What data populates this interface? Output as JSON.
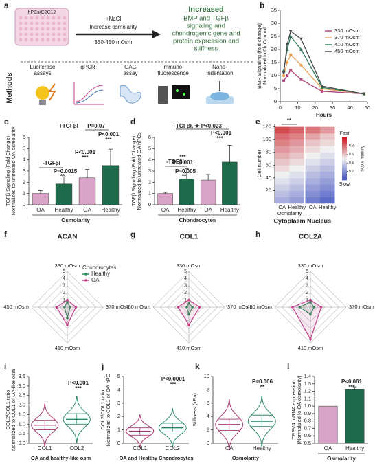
{
  "panel_a": {
    "label": "a",
    "cells": "hPCs/C2C12",
    "treatment": "+NaCl",
    "effect": "Increase osmolarity",
    "range": "330-450 mOsm",
    "result_title": "Increased",
    "result": [
      "BMP and TGFβ",
      "signaling and",
      "chondrogenic gene and",
      "protein expression and",
      "stiffness"
    ],
    "methods_title": "Methods",
    "methods": [
      [
        "Luciferase",
        "assays"
      ],
      [
        "qPCR"
      ],
      [
        "GAG",
        "assay"
      ],
      [
        "Immuno-",
        "fluorescence"
      ],
      [
        "Nano-",
        "indentation"
      ]
    ]
  },
  "chart_data": [
    {
      "label": "b",
      "type": "line",
      "ylabel": [
        "BMP Signaling (fold change)",
        "Normalized to 0h Control"
      ],
      "xlabel": "Hours",
      "x": [
        2,
        4,
        6,
        12,
        24,
        48
      ],
      "xlim": [
        0,
        50
      ],
      "xticks": [
        0,
        10,
        20,
        30,
        40,
        50
      ],
      "ylim": [
        0,
        35
      ],
      "yticks": [
        0,
        5,
        10,
        15,
        20,
        25,
        30,
        35
      ],
      "legend": "upper right",
      "series": [
        {
          "name": "330 mOsm",
          "color": "#b0457f",
          "values": [
            8,
            10,
            12,
            8.5,
            4,
            3
          ]
        },
        {
          "name": "370 mOsm",
          "color": "#f0a050",
          "values": [
            10,
            15,
            18,
            14,
            5,
            3
          ]
        },
        {
          "name": "410 mOsm",
          "color": "#2d7a55",
          "values": [
            12,
            20,
            25,
            20,
            5.5,
            3
          ]
        },
        {
          "name": "450 mOsm",
          "color": "#4a4a4a",
          "values": [
            11,
            22,
            27,
            24,
            6,
            3
          ]
        }
      ]
    },
    {
      "label": "c",
      "type": "bar",
      "categories": [
        "OA",
        "Healthy",
        "OA",
        "Healthy"
      ],
      "values": [
        1,
        1.85,
        2.4,
        3.5
      ],
      "errors": [
        0.25,
        0.65,
        0.75,
        1.45
      ],
      "colors": [
        "#d9a3c7",
        "#1c6b4a",
        "#d9a3c7",
        "#1c6b4a"
      ],
      "ylim": [
        0,
        6
      ],
      "yticks": [
        0,
        1,
        2,
        3,
        4,
        5,
        6
      ],
      "ylabel": [
        "TGFβ Signaling (Fold Change)",
        "Normalized to untreated OA osmolarity"
      ],
      "xlabel": "Osmolarity",
      "annotations": [
        "-TGFβI",
        "P=0.0015",
        "**",
        "+TGFβI",
        "P=0.07",
        "P<0.001",
        "***",
        "P<0.001",
        "***"
      ]
    },
    {
      "label": "d",
      "type": "bar",
      "categories": [
        "OA",
        "Healthy",
        "OA",
        "Healthy"
      ],
      "values": [
        1,
        2.3,
        2.2,
        3.8
      ],
      "errors": [
        0.1,
        0.9,
        0.5,
        1.5
      ],
      "colors": [
        "#d9a3c7",
        "#1c6b4a",
        "#d9a3c7",
        "#1c6b4a"
      ],
      "ylim": [
        0,
        6
      ],
      "yticks": [
        0,
        1,
        2,
        3,
        4,
        5,
        6
      ],
      "ylabel": [
        "TGFβ Signaling (Fold Change)",
        "Normalized to untreated OA hPCs"
      ],
      "xlabel": "Chondrocytes",
      "annotations": [
        "-TGFβI",
        "P=0.005",
        "**",
        "+TGFβI, ★ P<0.023",
        "P<0.001",
        "***",
        "P<0.001",
        "***"
      ]
    },
    {
      "label": "e",
      "type": "heatmap",
      "ylabel": "Cell number",
      "ylim": [
        0,
        125
      ],
      "yticks": [
        20,
        40,
        60,
        80,
        100,
        120
      ],
      "rows": [
        5,
        15,
        25,
        35,
        45,
        55,
        65,
        75,
        85,
        95,
        105,
        115
      ],
      "categories": [
        "OA",
        "Healthy",
        "OA",
        "Healthy"
      ],
      "groups": [
        "Cytoplasm",
        "Nucleus"
      ],
      "xlabel": "Osmolarity",
      "values": [
        [
          0.3,
          0.35,
          0.4,
          0.45,
          0.5,
          0.55,
          0.6,
          0.65,
          0.7,
          0.75,
          0.8,
          0.88
        ],
        [
          0.25,
          0.3,
          0.35,
          0.4,
          0.45,
          0.5,
          0.55,
          0.6,
          0.65,
          0.7,
          0.75,
          0.82
        ],
        [
          0.15,
          0.2,
          0.25,
          0.3,
          0.35,
          0.4,
          0.45,
          0.5,
          0.55,
          0.6,
          0.68,
          0.78
        ],
        [
          0.1,
          0.15,
          0.2,
          0.25,
          0.3,
          0.35,
          0.4,
          0.45,
          0.5,
          0.55,
          0.6,
          0.7
        ]
      ],
      "cbar_label": "SOX9 mobility",
      "cbar_high": "Fast",
      "cbar_low": "Slow",
      "cbar_ticks": [
        0.2,
        0.4,
        0.6,
        0.8
      ],
      "annotations": [
        "**"
      ]
    },
    {
      "label": "f",
      "type": "radar",
      "title": "ACAN",
      "categories": [
        "330 mOsm",
        "370 mOsm",
        "410 mOsm",
        "450 mOsm"
      ],
      "rlim": [
        0,
        5
      ],
      "rticks": [
        1,
        2,
        3,
        4,
        5
      ],
      "legend_title": "Chondrocytes",
      "series": [
        {
          "name": "Healthy",
          "color": "#2e8b57",
          "values": [
            0.7,
            0.4,
            1.5,
            0.4
          ]
        },
        {
          "name": "OA",
          "color": "#c2428a",
          "values": [
            1,
            1.2,
            2.5,
            1.5
          ]
        }
      ]
    },
    {
      "label": "g",
      "type": "radar",
      "title": "COL1",
      "categories": [
        "330 mOsm",
        "370 mOsm",
        "410 mOsm",
        "450 mOsm"
      ],
      "rlim": [
        0,
        5
      ],
      "rticks": [
        1,
        2,
        3,
        4,
        5
      ],
      "series": [
        {
          "color": "#2e8b57",
          "values": [
            0.5,
            0.5,
            1,
            0.3
          ]
        },
        {
          "color": "#c2428a",
          "values": [
            1,
            1.5,
            2.5,
            1.5
          ]
        }
      ]
    },
    {
      "label": "h",
      "type": "radar",
      "title": "COL2A",
      "categories": [
        "330 mOsm",
        "370 mOsm",
        "410 mOsm",
        "450 mOsm"
      ],
      "rlim": [
        0,
        5
      ],
      "rticks": [
        1,
        2,
        3,
        4,
        5
      ],
      "series": [
        {
          "color": "#2e8b57",
          "values": [
            0.7,
            0.5,
            1,
            1.5
          ]
        },
        {
          "color": "#c2428a",
          "values": [
            1,
            1.5,
            4.5,
            2.5
          ]
        }
      ]
    },
    {
      "label": "i",
      "type": "violin",
      "categories": [
        "COL1",
        "COL2"
      ],
      "medians": [
        0.95,
        1.25
      ],
      "q1": [
        0.7,
        1.0
      ],
      "q3": [
        1.2,
        1.55
      ],
      "colors": [
        "#a8336f",
        "#2a8a66"
      ],
      "ylim": [
        0,
        3.5
      ],
      "yticks": [
        {
          "value": 0,
          "label": "0.0"
        },
        0.5,
        {
          "value": 1,
          "label": "1.0"
        },
        1.5,
        {
          "value": 2,
          "label": "2.0"
        },
        2.5,
        {
          "value": 3,
          "label": "3.0"
        },
        3.5
      ],
      "ylabel": [
        "COL2/COL1 ratio",
        "Normalized to COL1 of OA-like osm"
      ],
      "xlabel": "OA and healthy-like osm",
      "annotations": [
        "P<0.001",
        "***"
      ]
    },
    {
      "label": "j",
      "type": "violin",
      "categories": [
        "COL1",
        "COL2"
      ],
      "medians": [
        0.9,
        1.15
      ],
      "q1": [
        0.6,
        0.85
      ],
      "q3": [
        1.15,
        1.5
      ],
      "colors": [
        "#a8336f",
        "#2a8a66"
      ],
      "ylim": [
        0,
        5
      ],
      "yticks": [
        0,
        1,
        2,
        3,
        4,
        5
      ],
      "ylabel": [
        "COL2/COL1 ratio",
        "Normalized to COL1 of OA hPC"
      ],
      "xlabel": "OA and Healthy Chondrocytes",
      "annotations": [
        "P<0.0001",
        "***"
      ]
    },
    {
      "label": "k",
      "type": "violin",
      "categories": [
        "OA",
        "Healthy"
      ],
      "medians": [
        2.8,
        3.3
      ],
      "q1": [
        1.9,
        2.5
      ],
      "q3": [
        3.6,
        4.2
      ],
      "colors": [
        "#a8336f",
        "#2a8a66"
      ],
      "ylim": [
        0,
        10
      ],
      "yticks": [
        0,
        2,
        4,
        6,
        8,
        10
      ],
      "ylabel": [
        "Stiffness (kPa)"
      ],
      "xlabel": "Osmolarity",
      "annotations": [
        "P=0.006",
        "**"
      ]
    },
    {
      "label": "l",
      "type": "bar",
      "categories": [
        "OA",
        "Healthy"
      ],
      "values": [
        1,
        1.23
      ],
      "errors": [
        null,
        0.03
      ],
      "colors": [
        "#d9a3c7",
        "#1c6b4a"
      ],
      "ylim": [
        0.5,
        1.4
      ],
      "yticks": [
        0.5,
        0.6,
        0.7,
        0.8,
        0.9,
        {
          "value": 1,
          "label": "1.0"
        },
        1.1,
        1.2,
        1.3,
        1.4
      ],
      "ylabel": [
        "TRPV4 mRNA expression",
        "(Normalized to OA osmolarity)"
      ],
      "xlabel": "Osmolarity",
      "annotations": [
        "P<0.001",
        "***"
      ]
    }
  ]
}
